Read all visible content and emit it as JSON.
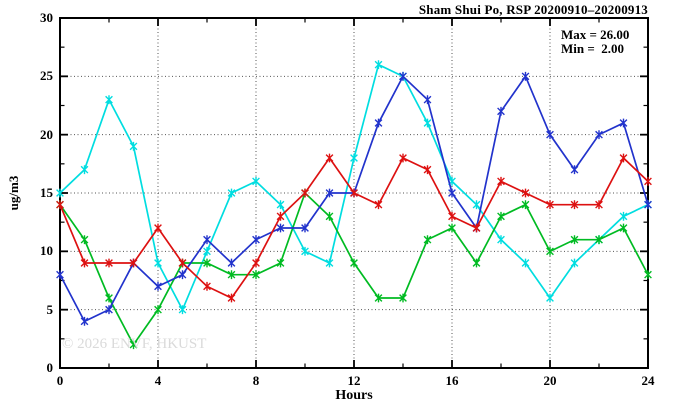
{
  "header": {
    "title": "Sham Shui Po, RSP 20200910–20200913"
  },
  "annotations": {
    "max_label": "Max = 26.00",
    "min_label": "Min =  2.00",
    "watermark": "© 2026 ENVF, HKUST"
  },
  "chart_data": {
    "type": "line",
    "title": "Sham Shui Po, RSP 20200910–20200913",
    "xlabel": "Hours",
    "ylabel": "ug/m3",
    "xlim": [
      0,
      24
    ],
    "ylim": [
      0,
      30
    ],
    "x_major_ticks": [
      0,
      4,
      8,
      12,
      16,
      20,
      24
    ],
    "x_minor_ticks": [
      2,
      6,
      10,
      14,
      18,
      22
    ],
    "y_major_ticks": [
      0,
      5,
      10,
      15,
      20,
      25,
      30
    ],
    "y_minor_ticks": [
      2.5,
      7.5,
      12.5,
      17.5,
      22.5,
      27.5
    ],
    "grid_x": [
      4,
      8,
      12,
      16,
      20
    ],
    "grid_y": [
      5,
      10,
      15,
      20,
      25
    ],
    "grid_on": true,
    "legend": "none",
    "max_value": 26.0,
    "min_value": 2.0,
    "x": [
      0,
      1,
      2,
      3,
      4,
      5,
      6,
      7,
      8,
      9,
      10,
      11,
      12,
      13,
      14,
      15,
      16,
      17,
      18,
      19,
      20,
      21,
      22,
      23,
      24
    ],
    "series": [
      {
        "name": "series-cyan",
        "color": "#00dde0",
        "values": [
          15,
          17,
          23,
          19,
          9,
          5,
          10,
          15,
          16,
          14,
          10,
          9,
          18,
          26,
          25,
          21,
          16,
          14,
          11,
          9,
          6,
          9,
          11,
          13,
          14
        ]
      },
      {
        "name": "series-green",
        "color": "#00bb22",
        "values": [
          14,
          11,
          6,
          2,
          5,
          9,
          9,
          8,
          8,
          9,
          15,
          13,
          9,
          6,
          6,
          11,
          12,
          9,
          13,
          14,
          10,
          11,
          11,
          12,
          8
        ]
      },
      {
        "name": "series-blue",
        "color": "#2233cc",
        "values": [
          8,
          4,
          5,
          9,
          7,
          8,
          11,
          9,
          11,
          12,
          12,
          15,
          15,
          21,
          25,
          23,
          15,
          12,
          22,
          25,
          20,
          17,
          20,
          21,
          14
        ]
      },
      {
        "name": "series-red",
        "color": "#dd1111",
        "values": [
          14,
          9,
          9,
          9,
          12,
          9,
          7,
          6,
          9,
          13,
          15,
          18,
          15,
          14,
          18,
          17,
          13,
          12,
          16,
          15,
          14,
          14,
          14,
          18,
          16
        ]
      }
    ]
  },
  "layout_colors": {
    "grid": "#555555",
    "border": "#000000",
    "watermark": "#dadada"
  }
}
